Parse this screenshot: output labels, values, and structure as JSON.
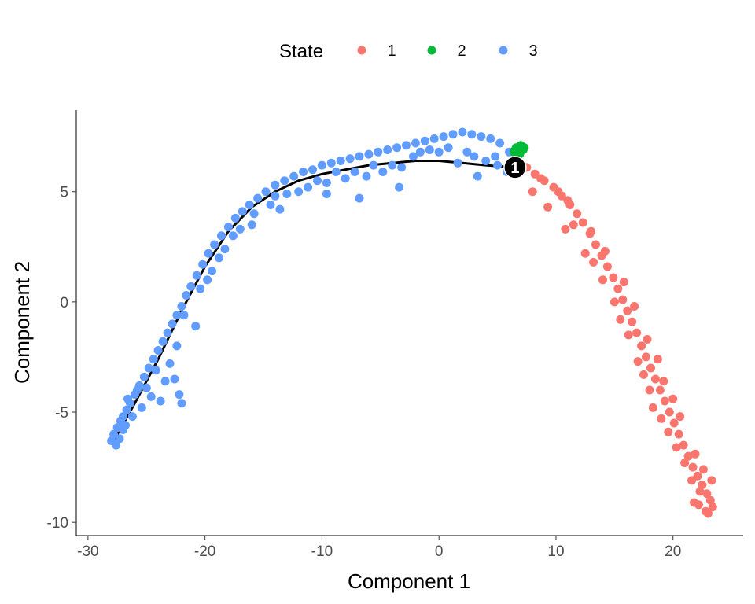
{
  "chart_data": {
    "type": "scatter",
    "xlabel": "Component 1",
    "ylabel": "Component 2",
    "xlim": [
      -31,
      26
    ],
    "ylim": [
      -10.6,
      8.7
    ],
    "x_ticks": [
      -30,
      -20,
      -10,
      0,
      10,
      20
    ],
    "y_ticks": [
      -10,
      -5,
      0,
      5
    ],
    "x_tick_labels": [
      "-30",
      "-20",
      "-10",
      "0",
      "10",
      "20"
    ],
    "y_tick_labels": [
      "-10",
      "-5",
      "0",
      "5"
    ],
    "grid": false,
    "legend": {
      "title": "State",
      "position": "top",
      "entries": [
        {
          "label": "1",
          "color": "#F8766D"
        },
        {
          "label": "2",
          "color": "#00BA38"
        },
        {
          "label": "3",
          "color": "#619CFF"
        }
      ]
    },
    "series": [
      {
        "name": "1",
        "color": "#F8766D",
        "points": [
          [
            6.5,
            6.0
          ],
          [
            7.5,
            6.1
          ],
          [
            8.2,
            5.8
          ],
          [
            9.0,
            5.5
          ],
          [
            9.8,
            5.2
          ],
          [
            10.5,
            4.8
          ],
          [
            11.2,
            4.4
          ],
          [
            11.8,
            4.0
          ],
          [
            12.3,
            3.6
          ],
          [
            12.9,
            3.1
          ],
          [
            13.4,
            2.6
          ],
          [
            13.9,
            2.1
          ],
          [
            14.4,
            1.6
          ],
          [
            14.9,
            1.1
          ],
          [
            15.3,
            0.6
          ],
          [
            15.7,
            0.1
          ],
          [
            16.1,
            -0.4
          ],
          [
            16.5,
            -0.9
          ],
          [
            16.9,
            -1.4
          ],
          [
            17.3,
            -2.0
          ],
          [
            17.7,
            -2.5
          ],
          [
            18.1,
            -3.0
          ],
          [
            18.5,
            -3.5
          ],
          [
            18.9,
            -4.0
          ],
          [
            19.3,
            -4.5
          ],
          [
            19.7,
            -5.0
          ],
          [
            20.1,
            -5.5
          ],
          [
            20.5,
            -6.0
          ],
          [
            20.9,
            -6.5
          ],
          [
            21.3,
            -7.0
          ],
          [
            21.7,
            -7.5
          ],
          [
            22.1,
            -7.9
          ],
          [
            22.5,
            -8.3
          ],
          [
            22.9,
            -8.7
          ],
          [
            23.2,
            -9.0
          ],
          [
            23.4,
            -9.3
          ],
          [
            22.8,
            -9.5
          ],
          [
            22.2,
            -9.2
          ],
          [
            8.0,
            5.0
          ],
          [
            9.3,
            4.3
          ],
          [
            10.8,
            3.3
          ],
          [
            11.5,
            3.5
          ],
          [
            12.5,
            2.2
          ],
          [
            13.2,
            1.8
          ],
          [
            14.0,
            1.0
          ],
          [
            15.0,
            0.0
          ],
          [
            15.5,
            -0.8
          ],
          [
            16.2,
            -1.5
          ],
          [
            17.0,
            -2.7
          ],
          [
            17.5,
            -3.3
          ],
          [
            18.0,
            -4.0
          ],
          [
            18.3,
            -4.8
          ],
          [
            19.0,
            -5.3
          ],
          [
            19.6,
            -5.9
          ],
          [
            20.3,
            -6.6
          ],
          [
            21.0,
            -7.3
          ],
          [
            21.6,
            -8.1
          ],
          [
            22.3,
            -8.6
          ],
          [
            23.0,
            -9.6
          ],
          [
            21.8,
            -9.1
          ],
          [
            7.0,
            5.9
          ],
          [
            8.7,
            5.6
          ],
          [
            10.2,
            5.0
          ],
          [
            11.0,
            4.6
          ],
          [
            13.0,
            3.2
          ],
          [
            14.2,
            2.3
          ],
          [
            15.8,
            0.9
          ],
          [
            16.7,
            -0.2
          ],
          [
            17.8,
            -1.7
          ],
          [
            19.2,
            -3.6
          ],
          [
            20.6,
            -5.2
          ],
          [
            21.9,
            -6.9
          ],
          [
            23.3,
            -8.1
          ],
          [
            22.6,
            -7.6
          ],
          [
            20.0,
            -4.4
          ],
          [
            18.7,
            -2.6
          ]
        ]
      },
      {
        "name": "2",
        "color": "#00BA38",
        "points": [
          [
            6.4,
            6.8
          ],
          [
            6.6,
            7.0
          ],
          [
            6.8,
            6.9
          ],
          [
            7.0,
            7.1
          ],
          [
            7.2,
            6.9
          ],
          [
            6.9,
            6.7
          ],
          [
            6.7,
            6.8
          ],
          [
            7.1,
            7.0
          ],
          [
            6.5,
            6.9
          ],
          [
            7.3,
            7.0
          ]
        ]
      },
      {
        "name": "3",
        "color": "#619CFF",
        "points": [
          [
            -28.0,
            -6.3
          ],
          [
            -27.8,
            -6.0
          ],
          [
            -27.5,
            -5.7
          ],
          [
            -27.2,
            -5.4
          ],
          [
            -27.0,
            -5.2
          ],
          [
            -26.7,
            -4.9
          ],
          [
            -26.4,
            -4.6
          ],
          [
            -26.0,
            -4.2
          ],
          [
            -25.6,
            -3.8
          ],
          [
            -25.2,
            -3.4
          ],
          [
            -24.8,
            -3.0
          ],
          [
            -24.4,
            -2.6
          ],
          [
            -24.0,
            -2.2
          ],
          [
            -23.6,
            -1.8
          ],
          [
            -23.2,
            -1.4
          ],
          [
            -22.8,
            -1.0
          ],
          [
            -22.4,
            -0.6
          ],
          [
            -22.0,
            -0.2
          ],
          [
            -21.6,
            0.3
          ],
          [
            -21.2,
            0.7
          ],
          [
            -20.7,
            1.2
          ],
          [
            -20.2,
            1.7
          ],
          [
            -19.7,
            2.2
          ],
          [
            -19.2,
            2.6
          ],
          [
            -18.6,
            3.0
          ],
          [
            -18.0,
            3.4
          ],
          [
            -17.4,
            3.8
          ],
          [
            -16.8,
            4.1
          ],
          [
            -16.2,
            4.4
          ],
          [
            -15.5,
            4.7
          ],
          [
            -14.8,
            5.0
          ],
          [
            -14.0,
            5.3
          ],
          [
            -13.2,
            5.5
          ],
          [
            -12.4,
            5.7
          ],
          [
            -11.6,
            5.9
          ],
          [
            -10.8,
            6.0
          ],
          [
            -10.0,
            6.2
          ],
          [
            -9.2,
            6.3
          ],
          [
            -8.4,
            6.4
          ],
          [
            -7.6,
            6.5
          ],
          [
            -6.8,
            6.6
          ],
          [
            -6.0,
            6.7
          ],
          [
            -5.2,
            6.8
          ],
          [
            -4.4,
            6.9
          ],
          [
            -3.6,
            7.0
          ],
          [
            -2.8,
            7.1
          ],
          [
            -2.0,
            7.2
          ],
          [
            -1.2,
            7.3
          ],
          [
            -0.4,
            7.4
          ],
          [
            0.4,
            7.5
          ],
          [
            1.2,
            7.6
          ],
          [
            2.0,
            7.7
          ],
          [
            2.8,
            7.6
          ],
          [
            3.6,
            7.5
          ],
          [
            4.4,
            7.4
          ],
          [
            5.2,
            7.2
          ],
          [
            6.0,
            6.8
          ],
          [
            3.0,
            6.6
          ],
          [
            4.0,
            6.4
          ],
          [
            5.0,
            6.2
          ],
          [
            5.8,
            5.9
          ],
          [
            3.3,
            5.7
          ],
          [
            -27.6,
            -6.5
          ],
          [
            -27.0,
            -5.8
          ],
          [
            -26.2,
            -5.2
          ],
          [
            -25.4,
            -4.8
          ],
          [
            -24.6,
            -4.3
          ],
          [
            -23.4,
            -3.6
          ],
          [
            -22.6,
            -3.5
          ],
          [
            -22.2,
            -4.2
          ],
          [
            -22.0,
            -4.6
          ],
          [
            -23.8,
            -4.5
          ],
          [
            -25.0,
            -3.9
          ],
          [
            -24.2,
            -3.1
          ],
          [
            -21.8,
            -0.6
          ],
          [
            -20.4,
            0.6
          ],
          [
            -19.4,
            1.4
          ],
          [
            -18.3,
            2.4
          ],
          [
            -17.0,
            3.3
          ],
          [
            -15.8,
            4.0
          ],
          [
            -14.4,
            4.4
          ],
          [
            -13.0,
            4.9
          ],
          [
            -11.2,
            5.2
          ],
          [
            -9.6,
            5.4
          ],
          [
            -8.0,
            5.6
          ],
          [
            -6.2,
            5.7
          ],
          [
            -4.8,
            5.9
          ],
          [
            -3.2,
            6.1
          ],
          [
            -2.2,
            6.6
          ],
          [
            -0.8,
            6.9
          ],
          [
            0.8,
            7.0
          ],
          [
            2.4,
            6.8
          ],
          [
            1.6,
            6.3
          ],
          [
            -16.0,
            3.5
          ],
          [
            -19.8,
            1.0
          ],
          [
            -20.8,
            -1.1
          ],
          [
            -22.4,
            -2.0
          ],
          [
            -26.8,
            -5.6
          ],
          [
            -12.0,
            5.0
          ],
          [
            -7.2,
            5.9
          ],
          [
            -5.6,
            6.2
          ],
          [
            -1.6,
            6.8
          ],
          [
            -18.8,
            2.0
          ],
          [
            -17.6,
            3.0
          ],
          [
            -14.0,
            4.8
          ],
          [
            -13.6,
            4.2
          ],
          [
            -10.4,
            5.5
          ],
          [
            -8.8,
            5.9
          ],
          [
            -4.0,
            6.2
          ],
          [
            0.0,
            6.8
          ],
          [
            4.8,
            6.6
          ],
          [
            -9.6,
            4.9
          ],
          [
            -6.8,
            4.7
          ],
          [
            -3.4,
            5.2
          ],
          [
            -26.6,
            -4.4
          ],
          [
            -27.3,
            -6.2
          ],
          [
            -25.8,
            -4.0
          ],
          [
            -23.0,
            -2.8
          ]
        ]
      }
    ],
    "trajectory": [
      [
        -27.8,
        -6.3
      ],
      [
        -26.0,
        -4.6
      ],
      [
        -24.0,
        -2.6
      ],
      [
        -22.0,
        -0.4
      ],
      [
        -20.0,
        1.6
      ],
      [
        -18.0,
        3.2
      ],
      [
        -16.0,
        4.3
      ],
      [
        -14.0,
        5.0
      ],
      [
        -12.0,
        5.5
      ],
      [
        -10.0,
        5.8
      ],
      [
        -8.0,
        6.0
      ],
      [
        -6.0,
        6.2
      ],
      [
        -4.0,
        6.3
      ],
      [
        -2.0,
        6.4
      ],
      [
        0.0,
        6.4
      ],
      [
        2.0,
        6.3
      ],
      [
        4.0,
        6.2
      ],
      [
        6.5,
        6.1
      ]
    ],
    "branch_points": [
      {
        "label": "1",
        "x": 6.5,
        "y": 6.1
      }
    ]
  }
}
